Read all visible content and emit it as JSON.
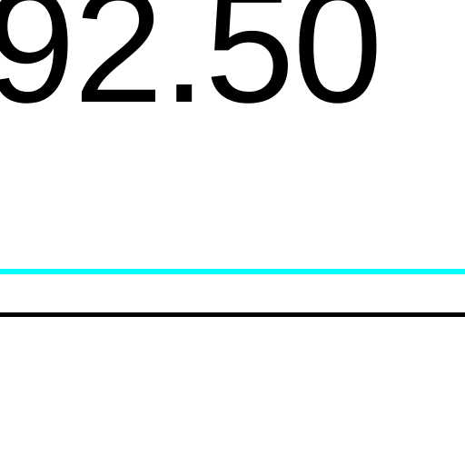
{
  "amount": {
    "value": "92.50"
  },
  "colors": {
    "background": "#ffffff",
    "text": "#000000",
    "accent_rule": "#00ffff",
    "dark_rule": "#000000"
  }
}
